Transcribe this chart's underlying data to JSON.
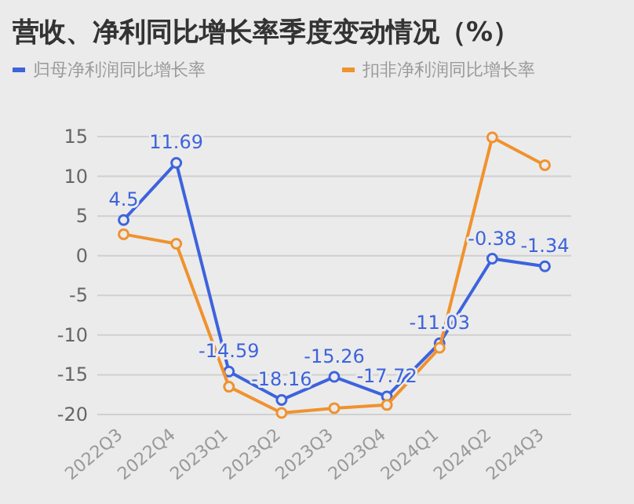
{
  "chart_data": {
    "type": "line",
    "title": "营收、净利同比增长率季度变动情况（%）",
    "categories": [
      "2022Q3",
      "2022Q4",
      "2023Q1",
      "2023Q2",
      "2023Q3",
      "2023Q4",
      "2024Q1",
      "2024Q2",
      "2024Q3"
    ],
    "series": [
      {
        "name": "归母净利润同比增长率",
        "color": "#3d63dd",
        "values": [
          4.5,
          11.69,
          -14.59,
          -18.16,
          -15.26,
          -17.72,
          -11.03,
          -0.38,
          -1.34
        ],
        "value_labels": [
          "4.5",
          "11.69",
          "-14.59",
          "-18.16",
          "-15.26",
          "-17.72",
          "-11.03",
          "-0.38",
          "-1.34"
        ]
      },
      {
        "name": "扣非净利润同比增长率",
        "color": "#f0922e",
        "values": [
          2.7,
          1.5,
          -16.5,
          -19.8,
          -19.2,
          -18.8,
          -11.6,
          14.9,
          11.4
        ]
      }
    ],
    "ylim": [
      -20,
      15
    ],
    "yticks": [
      -20,
      -15,
      -10,
      -5,
      0,
      5,
      10,
      15
    ],
    "grid": "y",
    "legend": "top",
    "marker": "circle"
  }
}
